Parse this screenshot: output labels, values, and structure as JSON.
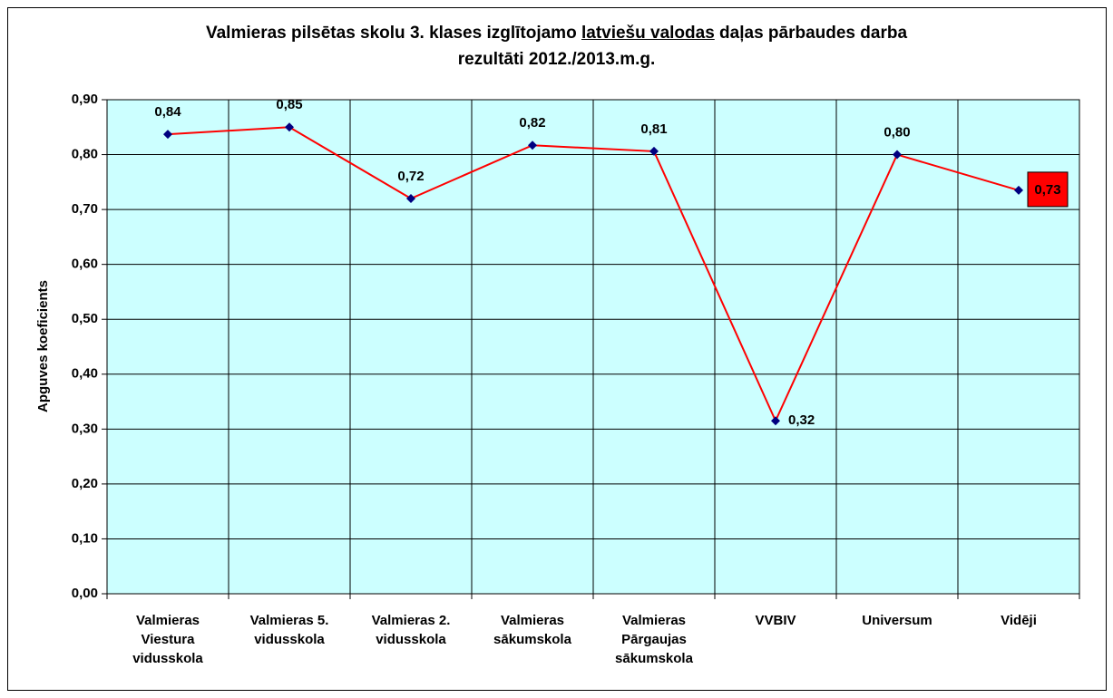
{
  "chart_data": {
    "type": "line",
    "title": [
      "Valmieras pilsētas skolu 3. klases izglītojamo ",
      "latviešu valodas",
      " daļas pārbaudes darba",
      "rezultāti 2012./2013.m.g."
    ],
    "y_label": "Apguves koeficients",
    "categories": [
      "Valmieras Viestura vidusskola",
      "Valmieras 5. vidusskola",
      "Valmieras 2. vidusskola",
      "Valmieras sākumskola",
      "Valmieras Pārgaujas sākumskola",
      "VVBIV",
      "Universum",
      "Vidēji"
    ],
    "series": [
      {
        "name": "Apguves koeficients",
        "color": "#ff0000",
        "marker_color": "#000080",
        "values": [
          0.837,
          0.85,
          0.72,
          0.817,
          0.806,
          0.315,
          0.8,
          0.735
        ],
        "value_labels": [
          "0,84",
          "0,85",
          "0,72",
          "0,82",
          "0,81",
          "0,32",
          "0,80",
          "0,73"
        ]
      }
    ],
    "ylim": [
      0,
      0.9
    ],
    "yticks": [
      {
        "value": 0,
        "label": "0,00"
      },
      {
        "value": 0.1,
        "label": "0,10"
      },
      {
        "value": 0.2,
        "label": "0,20"
      },
      {
        "value": 0.3,
        "label": "0,30"
      },
      {
        "value": 0.4,
        "label": "0,40"
      },
      {
        "value": 0.5,
        "label": "0,50"
      },
      {
        "value": 0.6,
        "label": "0,60"
      },
      {
        "value": 0.7,
        "label": "0,70"
      },
      {
        "value": 0.8,
        "label": "0,80"
      },
      {
        "value": 0.9,
        "label": "0,90"
      }
    ],
    "grid": true,
    "plot_background": "#ccffff"
  }
}
